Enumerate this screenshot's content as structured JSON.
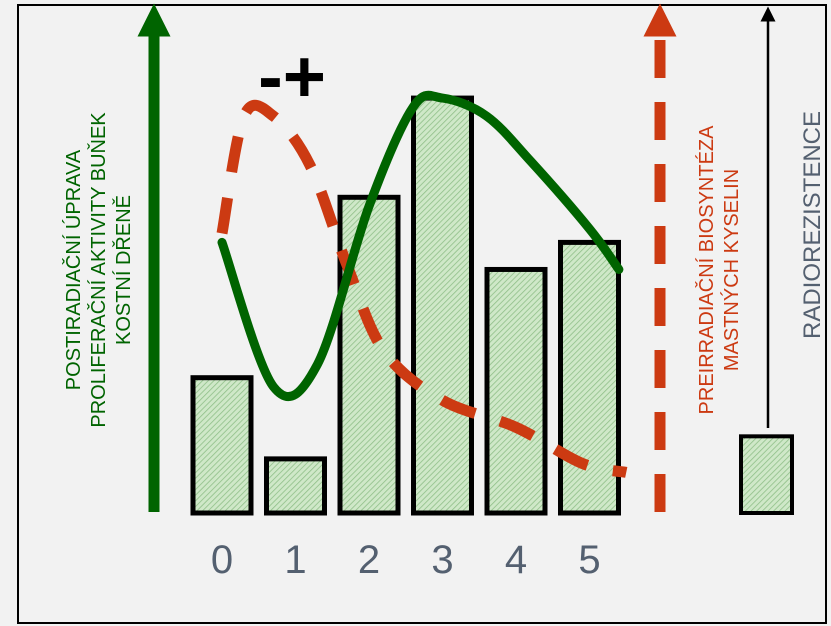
{
  "chart_data": {
    "type": "bar",
    "categories": [
      "0",
      "1",
      "2",
      "3",
      "4",
      "5"
    ],
    "values": [
      3.0,
      1.2,
      7.0,
      9.2,
      5.4,
      6.0
    ],
    "extra_bar": {
      "value": 1.7
    },
    "symbols": "-+",
    "colors": {
      "bar_fill": "#cfe8c8",
      "bar_hatch": "#8fbf88",
      "bar_stroke": "#000000",
      "green": "#006400",
      "red": "#cc3a12",
      "black": "#000000",
      "tick": "#546070"
    },
    "axes": {
      "green_label_lines": [
        "POSTIRADIAČNÍ ÚPRAVA",
        "PROLIFERAČNÍ AKTIVITY BUŇEK",
        "KOSTNÍ DŘENĚ"
      ],
      "red_label_lines": [
        "PREIRRADIAČNÍ BIOSYNTÉZA",
        "MASTNÝCH KYSELIN"
      ],
      "black_label": "RADIOREZISTENCE"
    },
    "green_curve": {
      "name": "POSTIRADIAČNÍ ÚPRAVA PROLIFERAČNÍ AKTIVITY BUŇEK KOSTNÍ DŘENĚ",
      "x": [
        0.0,
        0.7,
        1.3,
        2.0,
        2.6,
        3.0,
        3.6,
        4.2,
        5.0,
        5.4
      ],
      "y": [
        6.0,
        2.8,
        3.3,
        6.8,
        9.0,
        9.2,
        8.8,
        7.8,
        6.3,
        5.4
      ]
    },
    "red_curve": {
      "name": "PREIRRADIAČNÍ BIOSYNTÉZA MASTNÝCH KYSELIN",
      "x": [
        0.0,
        0.3,
        0.7,
        1.2,
        1.7,
        2.2,
        3.0,
        4.0,
        4.9,
        5.5
      ],
      "y": [
        6.2,
        8.8,
        8.8,
        7.7,
        5.5,
        3.6,
        2.5,
        1.9,
        1.1,
        0.9
      ]
    },
    "ylim": [
      0,
      10
    ]
  }
}
